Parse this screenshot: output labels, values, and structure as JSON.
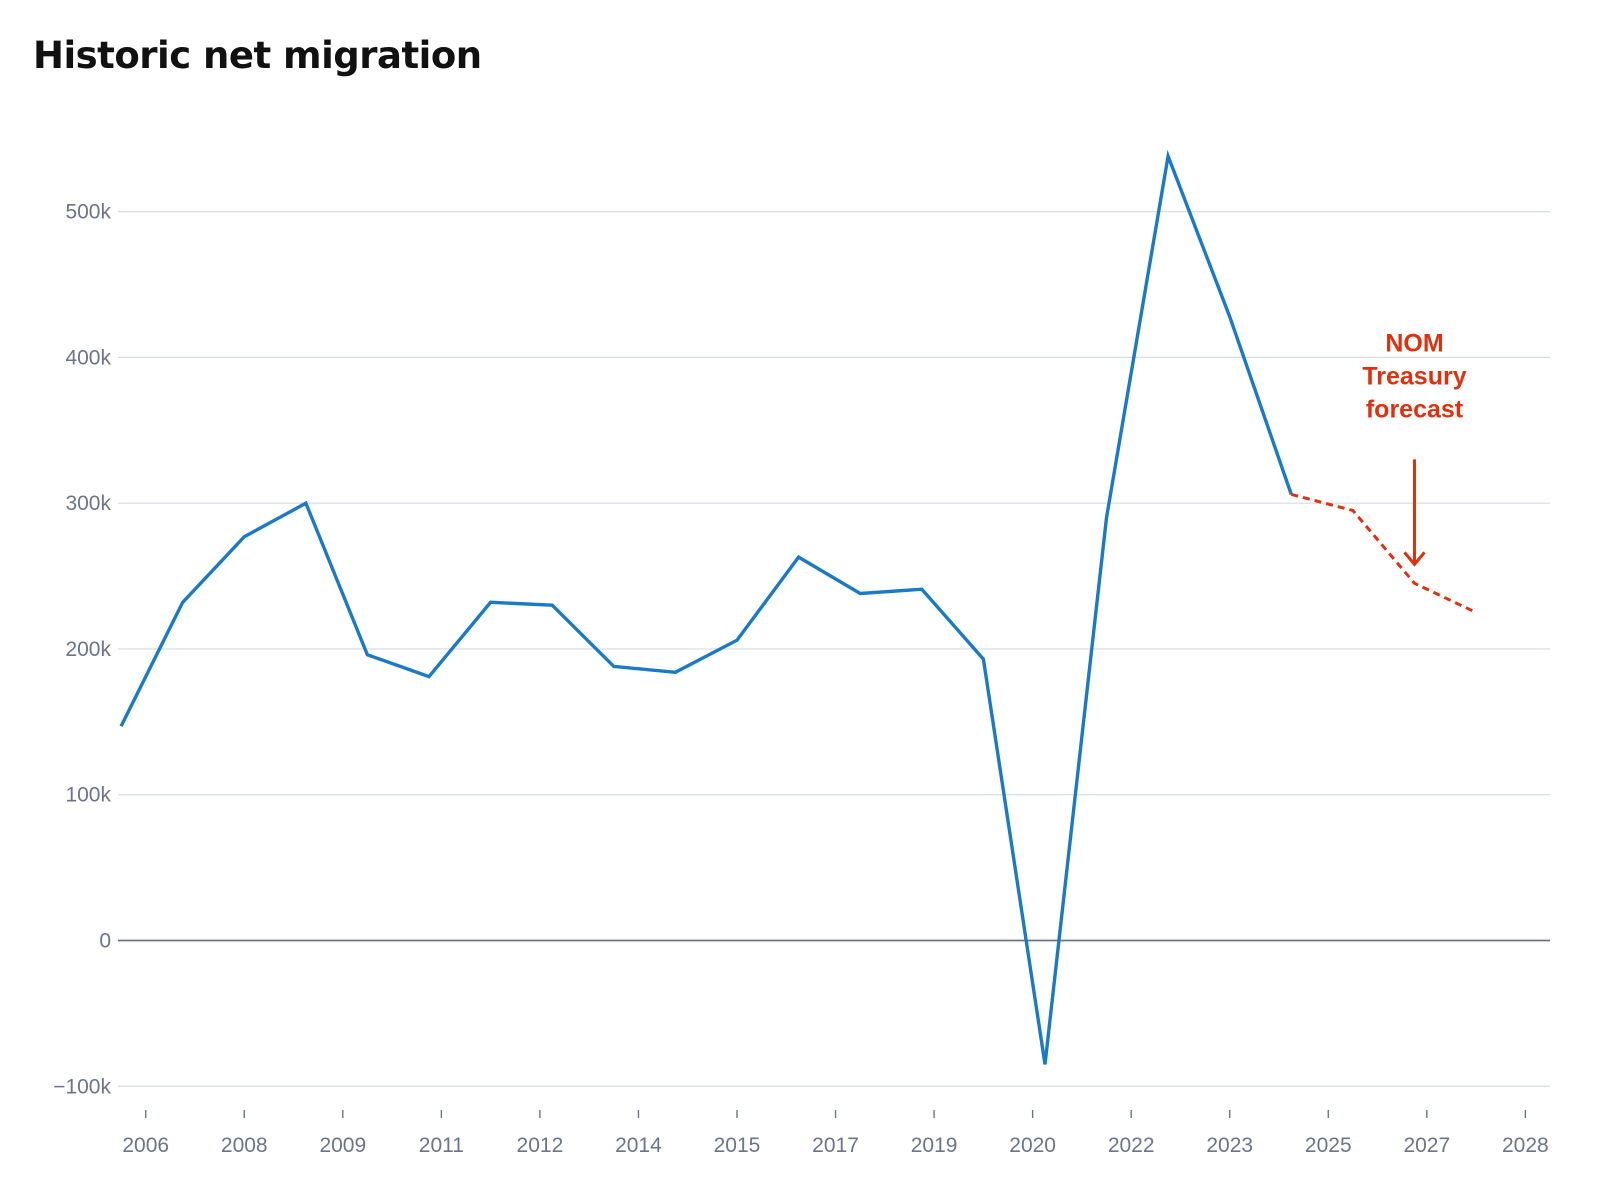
{
  "chart_data": {
    "type": "line",
    "title": "Historic net migration",
    "xlabel": "",
    "ylabel": "",
    "ylim": [
      -130000,
      580000
    ],
    "yticks": [
      {
        "value": -100000,
        "label": "−100k"
      },
      {
        "value": 0,
        "label": "0"
      },
      {
        "value": 100000,
        "label": "100k"
      },
      {
        "value": 200000,
        "label": "200k"
      },
      {
        "value": 300000,
        "label": "300k"
      },
      {
        "value": 400000,
        "label": "400k"
      },
      {
        "value": 500000,
        "label": "500k"
      }
    ],
    "xticks": [
      {
        "pos": 0.4,
        "label": "2006"
      },
      {
        "pos": 2.0,
        "label": "2008"
      },
      {
        "pos": 3.6,
        "label": "2009"
      },
      {
        "pos": 5.2,
        "label": "2011"
      },
      {
        "pos": 6.8,
        "label": "2012"
      },
      {
        "pos": 8.4,
        "label": "2014"
      },
      {
        "pos": 10.0,
        "label": "2015"
      },
      {
        "pos": 11.6,
        "label": "2017"
      },
      {
        "pos": 13.2,
        "label": "2019"
      },
      {
        "pos": 14.8,
        "label": "2020"
      },
      {
        "pos": 16.4,
        "label": "2022"
      },
      {
        "pos": 18.0,
        "label": "2023"
      },
      {
        "pos": 19.6,
        "label": "2025"
      },
      {
        "pos": 21.2,
        "label": "2027"
      },
      {
        "pos": 22.8,
        "label": "2028"
      }
    ],
    "xlim": [
      -0.05,
      23.2
    ],
    "series": [
      {
        "style": "solid",
        "color": "#1a7ac7",
        "x": [
          0,
          1,
          2,
          3,
          4,
          5,
          6,
          7,
          8,
          9,
          10,
          11,
          12,
          13,
          14,
          15,
          16,
          17,
          18,
          19
        ],
        "values": [
          147000,
          232000,
          277000,
          300000,
          196000,
          181000,
          232000,
          230000,
          188000,
          184000,
          206000,
          263000,
          238000,
          241000,
          193000,
          -85000,
          290000,
          538000,
          428000,
          306000
        ]
      },
      {
        "style": "dashed",
        "color": "#e0310f",
        "x": [
          19,
          20,
          21,
          22
        ],
        "values": [
          306000,
          295000,
          245000,
          225000
        ]
      }
    ],
    "annotations": [
      {
        "lines": [
          "NOM",
          "Treasury",
          "forecast"
        ],
        "x": 21.0,
        "arrow_from_value": 330000,
        "arrow_to_value": 258000,
        "color": "#e0310f"
      }
    ]
  }
}
